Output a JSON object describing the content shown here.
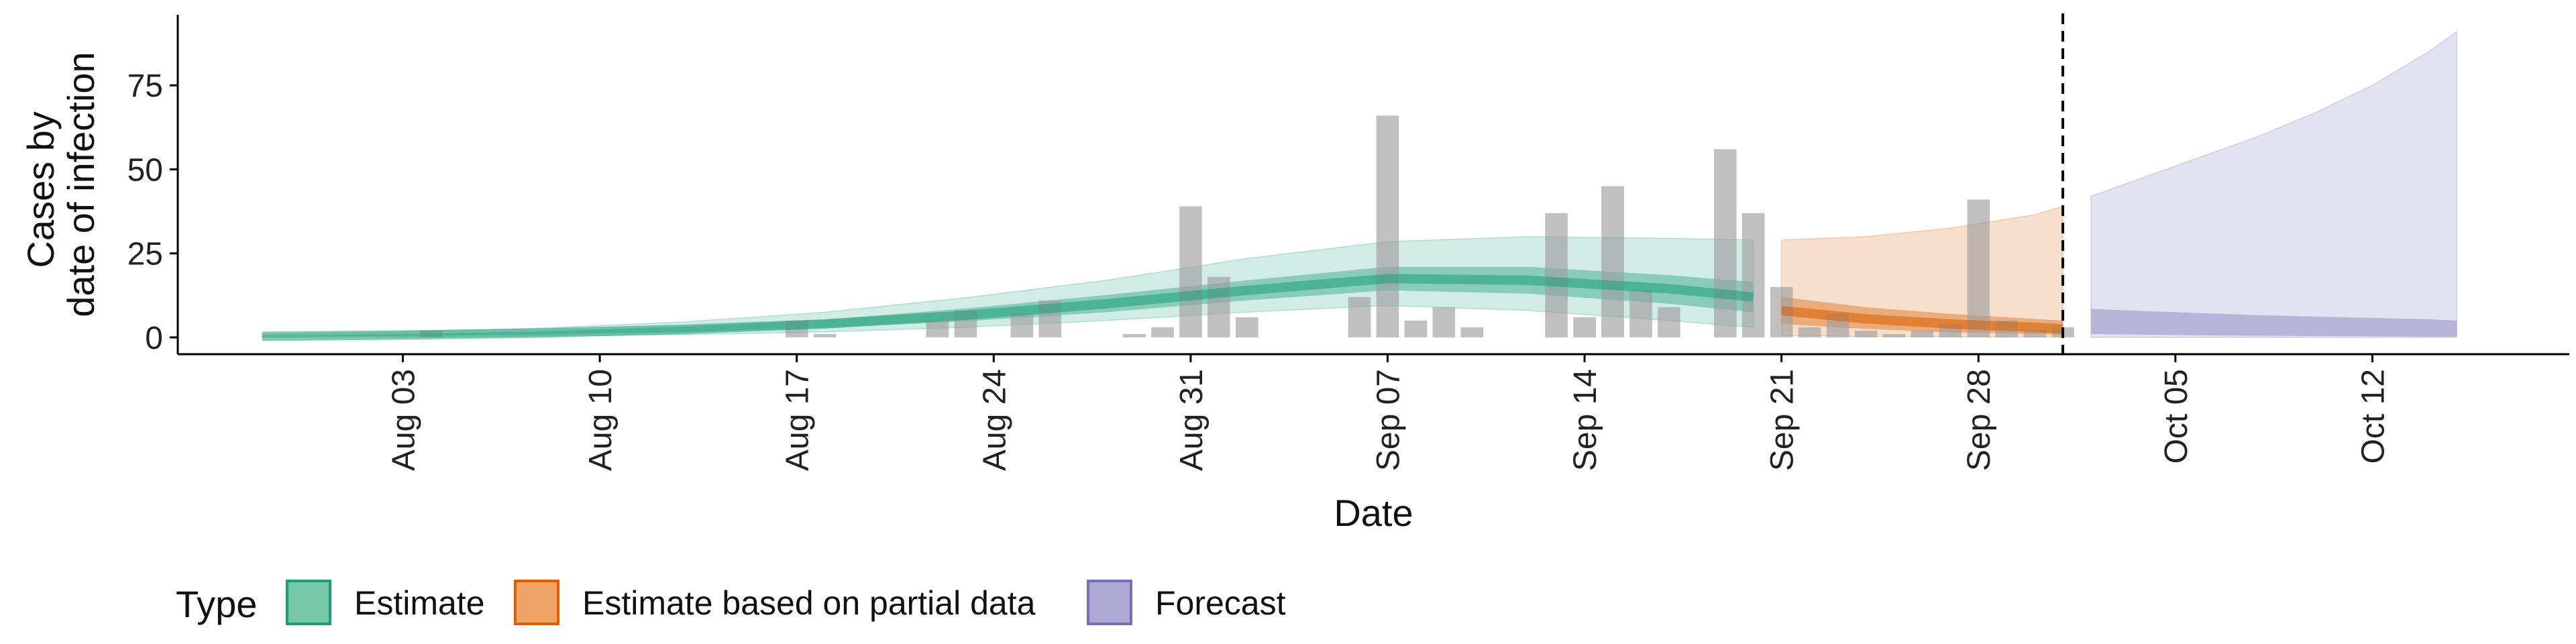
{
  "chart_data": {
    "type": "area",
    "title": "",
    "xlabel": "Date",
    "ylabel_lines": [
      "Cases by",
      "date of infection"
    ],
    "x_range": [
      "2020-07-26",
      "2020-10-19"
    ],
    "ylim": [
      -5,
      96
    ],
    "y_ticks": [
      0,
      25,
      50,
      75
    ],
    "x_ticks": [
      {
        "date": "2020-08-03",
        "label": "Aug 03"
      },
      {
        "date": "2020-08-10",
        "label": "Aug 10"
      },
      {
        "date": "2020-08-17",
        "label": "Aug 17"
      },
      {
        "date": "2020-08-24",
        "label": "Aug 24"
      },
      {
        "date": "2020-08-31",
        "label": "Aug 31"
      },
      {
        "date": "2020-09-07",
        "label": "Sep 07"
      },
      {
        "date": "2020-09-14",
        "label": "Sep 14"
      },
      {
        "date": "2020-09-21",
        "label": "Sep 21"
      },
      {
        "date": "2020-09-28",
        "label": "Sep 28"
      },
      {
        "date": "2020-10-05",
        "label": "Oct 05"
      },
      {
        "date": "2020-10-12",
        "label": "Oct 12"
      }
    ],
    "cut_date": "2020-10-01",
    "grid": false,
    "legend_position": "bottom",
    "legend": {
      "title": "Type",
      "items": [
        {
          "label": "Estimate",
          "fill": "#76c6a8",
          "stroke": "#1b9e77"
        },
        {
          "label": "Estimate based on partial data",
          "fill": "#eea266",
          "stroke": "#d95f02"
        },
        {
          "label": "Forecast",
          "fill": "#aeaad4",
          "stroke": "#7570b3"
        }
      ]
    },
    "colors": {
      "Estimate": "#1b9e77",
      "Estimate based on partial data": "#d95f02",
      "Forecast": "#7570b3",
      "bars": "#9e9e9e",
      "cut_line": "#000000"
    },
    "bars": [
      {
        "date": "2020-08-04",
        "value": 2
      },
      {
        "date": "2020-08-17",
        "value": 5
      },
      {
        "date": "2020-08-18",
        "value": 1
      },
      {
        "date": "2020-08-22",
        "value": 5
      },
      {
        "date": "2020-08-23",
        "value": 8
      },
      {
        "date": "2020-08-25",
        "value": 7
      },
      {
        "date": "2020-08-26",
        "value": 11
      },
      {
        "date": "2020-08-29",
        "value": 1
      },
      {
        "date": "2020-08-30",
        "value": 3
      },
      {
        "date": "2020-08-31",
        "value": 39
      },
      {
        "date": "2020-09-01",
        "value": 18
      },
      {
        "date": "2020-09-02",
        "value": 6
      },
      {
        "date": "2020-09-06",
        "value": 12
      },
      {
        "date": "2020-09-07",
        "value": 66
      },
      {
        "date": "2020-09-08",
        "value": 5
      },
      {
        "date": "2020-09-09",
        "value": 9
      },
      {
        "date": "2020-09-10",
        "value": 3
      },
      {
        "date": "2020-09-13",
        "value": 37
      },
      {
        "date": "2020-09-14",
        "value": 6
      },
      {
        "date": "2020-09-15",
        "value": 45
      },
      {
        "date": "2020-09-16",
        "value": 14
      },
      {
        "date": "2020-09-17",
        "value": 9
      },
      {
        "date": "2020-09-19",
        "value": 56
      },
      {
        "date": "2020-09-20",
        "value": 37
      },
      {
        "date": "2020-09-21",
        "value": 15
      },
      {
        "date": "2020-09-22",
        "value": 3
      },
      {
        "date": "2020-09-23",
        "value": 7
      },
      {
        "date": "2020-09-24",
        "value": 2
      },
      {
        "date": "2020-09-25",
        "value": 1
      },
      {
        "date": "2020-09-26",
        "value": 2
      },
      {
        "date": "2020-09-27",
        "value": 4
      },
      {
        "date": "2020-09-28",
        "value": 41
      },
      {
        "date": "2020-09-29",
        "value": 5
      },
      {
        "date": "2020-09-30",
        "value": 2
      },
      {
        "date": "2020-10-01",
        "value": 3
      }
    ],
    "series": [
      {
        "name": "Estimate",
        "x": [
          "2020-07-29",
          "2020-08-03",
          "2020-08-08",
          "2020-08-13",
          "2020-08-18",
          "2020-08-23",
          "2020-08-28",
          "2020-09-02",
          "2020-09-07",
          "2020-09-12",
          "2020-09-17",
          "2020-09-20"
        ],
        "median": [
          0.3,
          0.7,
          1.3,
          2.4,
          4.0,
          6.6,
          10.0,
          14.0,
          17.5,
          17.0,
          14.5,
          12.0
        ],
        "inner_low": [
          0.2,
          0.4,
          0.8,
          1.6,
          2.8,
          4.8,
          7.5,
          11.0,
          14.0,
          13.0,
          10.0,
          7.5
        ],
        "inner_high": [
          0.5,
          1.0,
          1.8,
          3.2,
          5.3,
          8.6,
          12.6,
          17.0,
          21.0,
          21.0,
          18.5,
          16.5
        ],
        "outer_low": [
          0,
          0.1,
          0.4,
          0.8,
          1.6,
          3.0,
          5.0,
          7.5,
          9.5,
          8.0,
          5.0,
          3.0
        ],
        "outer_high": [
          0.9,
          1.6,
          2.8,
          4.6,
          7.5,
          11.8,
          17.0,
          23.5,
          28.5,
          30.0,
          29.5,
          29.0
        ]
      },
      {
        "name": "Estimate based on partial data",
        "x": [
          "2020-09-21",
          "2020-09-24",
          "2020-09-27",
          "2020-09-30",
          "2020-10-01"
        ],
        "median": [
          8.0,
          5.5,
          4.0,
          3.0,
          2.5
        ],
        "inner_low": [
          4.0,
          2.5,
          1.5,
          1.0,
          0.8
        ],
        "inner_high": [
          12.0,
          9.0,
          7.0,
          5.5,
          5.0
        ],
        "outer_low": [
          0.5,
          0.3,
          0.2,
          0.1,
          0.1
        ],
        "outer_high": [
          29.0,
          30.0,
          32.5,
          36.5,
          39.0
        ]
      },
      {
        "name": "Forecast",
        "x": [
          "2020-10-02",
          "2020-10-04",
          "2020-10-06",
          "2020-10-08",
          "2020-10-10",
          "2020-10-12",
          "2020-10-14",
          "2020-10-15"
        ],
        "outer_low": [
          0,
          0,
          0,
          0,
          0,
          0,
          0,
          0
        ],
        "outer_high": [
          42,
          48,
          54,
          60,
          67,
          75,
          85,
          91
        ],
        "inner_low": [
          1.0,
          0.8,
          0.6,
          0.5,
          0.4,
          0.3,
          0.2,
          0.2
        ],
        "inner_high": [
          8.5,
          7.8,
          7.2,
          6.6,
          6.2,
          5.8,
          5.4,
          5.0
        ]
      }
    ]
  }
}
